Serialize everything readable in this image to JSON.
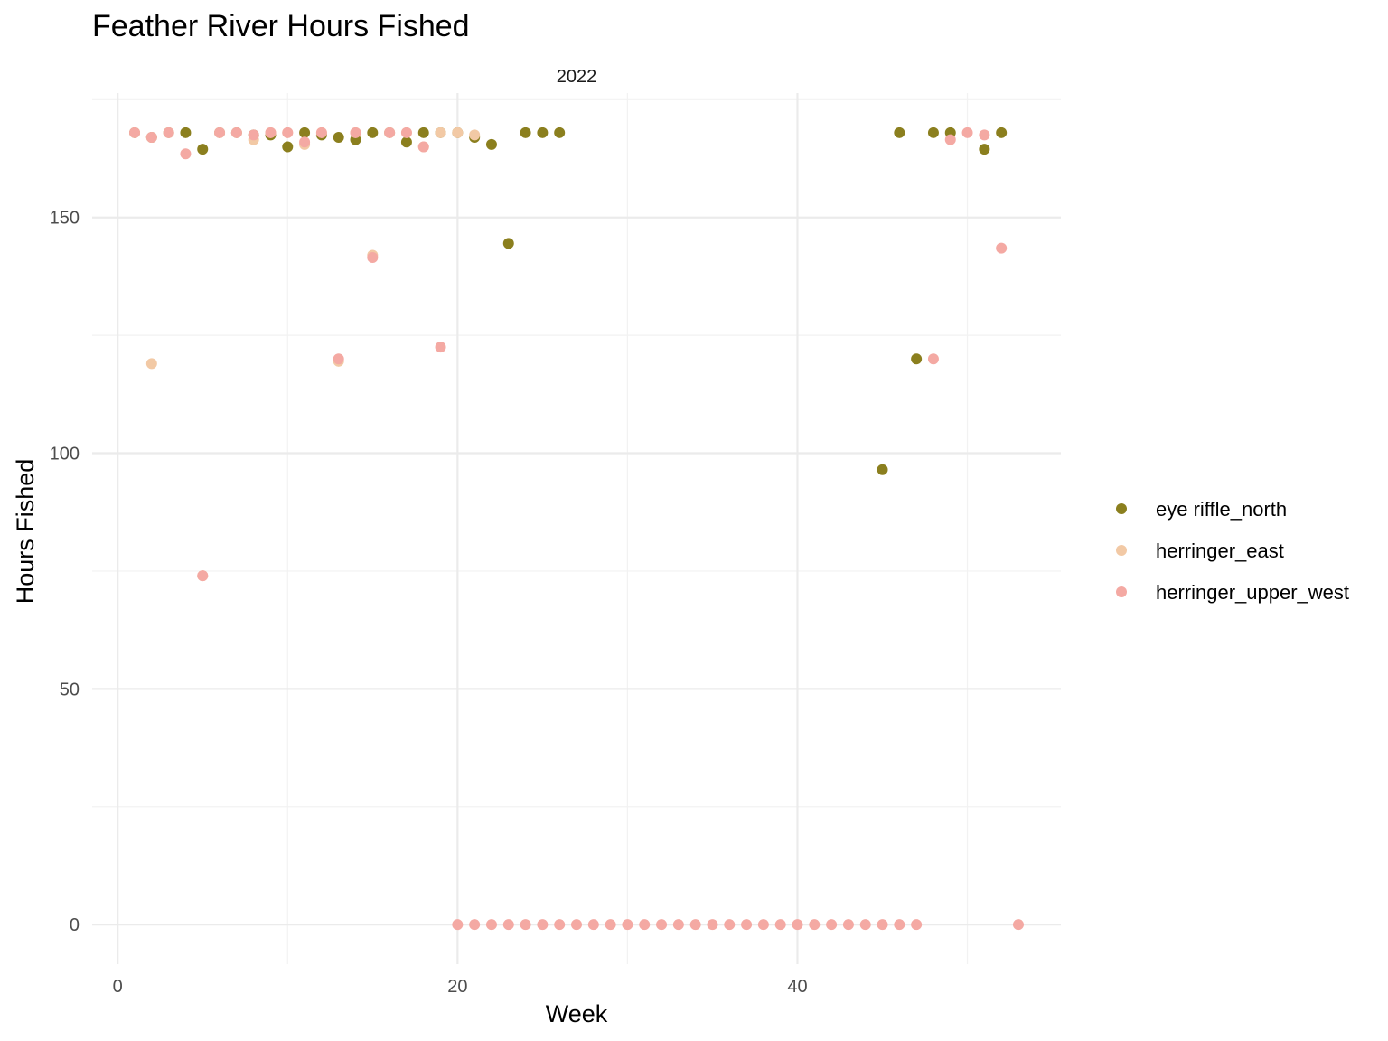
{
  "chart_data": {
    "type": "scatter",
    "title": "Feather River Hours Fished",
    "facet_label": "2022",
    "xlabel": "Week",
    "ylabel": "Hours Fished",
    "xlim": [
      -1.5,
      55.5
    ],
    "ylim": [
      -8.4,
      176.4
    ],
    "x_ticks": [
      0,
      20,
      40
    ],
    "y_ticks": [
      0,
      50,
      100,
      150
    ],
    "x_tick_labels": [
      "0",
      "20",
      "40"
    ],
    "y_tick_labels": [
      "0",
      "50",
      "100",
      "150"
    ],
    "grid": true,
    "legend_position": "right",
    "series": [
      {
        "name": "eye riffle_north",
        "color": "#8b7f1e",
        "points": [
          [
            1,
            168
          ],
          [
            2,
            167
          ],
          [
            3,
            168
          ],
          [
            4,
            168
          ],
          [
            5,
            164.5
          ],
          [
            6,
            168
          ],
          [
            7,
            168
          ],
          [
            8,
            167.5
          ],
          [
            9,
            167.5
          ],
          [
            10,
            165
          ],
          [
            11,
            168
          ],
          [
            12,
            167.5
          ],
          [
            13,
            167
          ],
          [
            14,
            166.5
          ],
          [
            15,
            168
          ],
          [
            16,
            168
          ],
          [
            17,
            166
          ],
          [
            18,
            168
          ],
          [
            19,
            168
          ],
          [
            20,
            168
          ],
          [
            21,
            167
          ],
          [
            22,
            165.5
          ],
          [
            23,
            144.5
          ],
          [
            24,
            168
          ],
          [
            25,
            168
          ],
          [
            26,
            168
          ],
          [
            45,
            96.5
          ],
          [
            46,
            168
          ],
          [
            47,
            120
          ],
          [
            48,
            168
          ],
          [
            49,
            168
          ],
          [
            51,
            164.5
          ],
          [
            52,
            168
          ]
        ]
      },
      {
        "name": "herringer_east",
        "color": "#f2c9a5",
        "points": [
          [
            1,
            168
          ],
          [
            2,
            167
          ],
          [
            2,
            119
          ],
          [
            3,
            168
          ],
          [
            5,
            74
          ],
          [
            6,
            168
          ],
          [
            7,
            168
          ],
          [
            8,
            166.5
          ],
          [
            9,
            168
          ],
          [
            10,
            168
          ],
          [
            11,
            165.5
          ],
          [
            12,
            168
          ],
          [
            13,
            119.5
          ],
          [
            14,
            168
          ],
          [
            15,
            142
          ],
          [
            16,
            168
          ],
          [
            17,
            168
          ],
          [
            18,
            165
          ],
          [
            19,
            168
          ],
          [
            20,
            168
          ],
          [
            21,
            167.5
          ]
        ]
      },
      {
        "name": "herringer_upper_west",
        "color": "#f4a9a3",
        "points": [
          [
            1,
            168
          ],
          [
            2,
            167
          ],
          [
            3,
            168
          ],
          [
            4,
            163.5
          ],
          [
            5,
            74
          ],
          [
            6,
            168
          ],
          [
            7,
            168
          ],
          [
            8,
            167.5
          ],
          [
            9,
            168
          ],
          [
            10,
            168
          ],
          [
            11,
            166
          ],
          [
            12,
            168
          ],
          [
            13,
            120
          ],
          [
            14,
            168
          ],
          [
            15,
            141.5
          ],
          [
            16,
            168
          ],
          [
            17,
            168
          ],
          [
            18,
            165
          ],
          [
            19,
            122.5
          ],
          [
            20,
            0
          ],
          [
            21,
            0
          ],
          [
            22,
            0
          ],
          [
            23,
            0
          ],
          [
            24,
            0
          ],
          [
            25,
            0
          ],
          [
            26,
            0
          ],
          [
            27,
            0
          ],
          [
            28,
            0
          ],
          [
            29,
            0
          ],
          [
            30,
            0
          ],
          [
            31,
            0
          ],
          [
            32,
            0
          ],
          [
            33,
            0
          ],
          [
            34,
            0
          ],
          [
            35,
            0
          ],
          [
            36,
            0
          ],
          [
            37,
            0
          ],
          [
            38,
            0
          ],
          [
            39,
            0
          ],
          [
            40,
            0
          ],
          [
            41,
            0
          ],
          [
            42,
            0
          ],
          [
            43,
            0
          ],
          [
            44,
            0
          ],
          [
            45,
            0
          ],
          [
            46,
            0
          ],
          [
            47,
            0
          ],
          [
            48,
            120
          ],
          [
            49,
            166.5
          ],
          [
            50,
            168
          ],
          [
            51,
            167.5
          ],
          [
            52,
            143.5
          ],
          [
            53,
            0
          ]
        ]
      }
    ]
  }
}
